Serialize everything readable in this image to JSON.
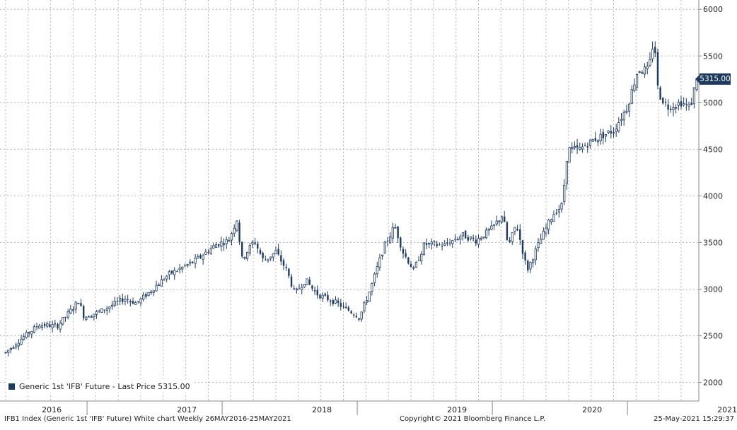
{
  "colors": {
    "candle": "#1f3a5f",
    "grid": "#b5b5b5",
    "axis_text": "#222222",
    "badge_bg": "#1f3a5f",
    "badge_text": "#ffffff"
  },
  "chart_data": {
    "type": "candlestick",
    "title": "IFB1 Index (Generic 1st 'IFB' Future) White chart",
    "frequency": "Weekly",
    "range_label": "26MAY2016-25MAY2021",
    "ylim": [
      1800,
      6100
    ],
    "y_ticks": [
      2000,
      2500,
      3000,
      3500,
      4000,
      4500,
      5000,
      5500,
      6000
    ],
    "x_ticks": [
      {
        "label": "2016",
        "t": 0.1
      },
      {
        "label": "2017",
        "t": 1.1
      },
      {
        "label": "2018",
        "t": 2.1
      },
      {
        "label": "2019",
        "t": 3.1
      },
      {
        "label": "2020",
        "t": 4.1
      },
      {
        "label": "2021",
        "t": 5.1
      }
    ],
    "x_range": [
      0,
      5.0
    ],
    "keypoints": [
      {
        "t": 0.0,
        "v": 2320
      },
      {
        "t": 0.1,
        "v": 2450
      },
      {
        "t": 0.25,
        "v": 2620
      },
      {
        "t": 0.38,
        "v": 2600
      },
      {
        "t": 0.5,
        "v": 2800
      },
      {
        "t": 0.54,
        "v": 2880
      },
      {
        "t": 0.58,
        "v": 2700
      },
      {
        "t": 0.7,
        "v": 2760
      },
      {
        "t": 0.88,
        "v": 2900
      },
      {
        "t": 0.97,
        "v": 2850
      },
      {
        "t": 1.05,
        "v": 2950
      },
      {
        "t": 1.2,
        "v": 3150
      },
      {
        "t": 1.4,
        "v": 3300
      },
      {
        "t": 1.56,
        "v": 3480
      },
      {
        "t": 1.65,
        "v": 3520
      },
      {
        "t": 1.72,
        "v": 3780
      },
      {
        "t": 1.74,
        "v": 3300
      },
      {
        "t": 1.84,
        "v": 3520
      },
      {
        "t": 1.91,
        "v": 3300
      },
      {
        "t": 2.0,
        "v": 3400
      },
      {
        "t": 2.08,
        "v": 3200
      },
      {
        "t": 2.14,
        "v": 2950
      },
      {
        "t": 2.22,
        "v": 3100
      },
      {
        "t": 2.3,
        "v": 2950
      },
      {
        "t": 2.45,
        "v": 2850
      },
      {
        "t": 2.62,
        "v": 2700
      },
      {
        "t": 2.7,
        "v": 3000
      },
      {
        "t": 2.8,
        "v": 3450
      },
      {
        "t": 2.88,
        "v": 3680
      },
      {
        "t": 2.94,
        "v": 3400
      },
      {
        "t": 3.02,
        "v": 3200
      },
      {
        "t": 3.1,
        "v": 3480
      },
      {
        "t": 3.25,
        "v": 3470
      },
      {
        "t": 3.38,
        "v": 3580
      },
      {
        "t": 3.48,
        "v": 3520
      },
      {
        "t": 3.6,
        "v": 3650
      },
      {
        "t": 3.68,
        "v": 3800
      },
      {
        "t": 3.72,
        "v": 3450
      },
      {
        "t": 3.78,
        "v": 3700
      },
      {
        "t": 3.86,
        "v": 3200
      },
      {
        "t": 3.95,
        "v": 3500
      },
      {
        "t": 4.05,
        "v": 3800
      },
      {
        "t": 4.12,
        "v": 3900
      },
      {
        "t": 4.16,
        "v": 4500
      },
      {
        "t": 4.25,
        "v": 4500
      },
      {
        "t": 4.35,
        "v": 4600
      },
      {
        "t": 4.5,
        "v": 4700
      },
      {
        "t": 4.6,
        "v": 4950
      },
      {
        "t": 4.68,
        "v": 5350
      },
      {
        "t": 4.76,
        "v": 5350
      },
      {
        "t": 4.8,
        "v": 5700
      },
      {
        "t": 4.83,
        "v": 5100
      },
      {
        "t": 4.9,
        "v": 4950
      },
      {
        "t": 5.0,
        "v": 5000
      },
      {
        "t": 5.07,
        "v": 4950
      },
      {
        "t": 5.12,
        "v": 5315
      }
    ],
    "series": [
      {
        "name": "Generic 1st 'IFB' Future - Last Price",
        "last_price": "5315.00"
      }
    ]
  },
  "legend": {
    "text": "Generic 1st 'IFB' Future - Last Price 5315.00"
  },
  "last_price_badge": "5315.00",
  "footer": {
    "left": "IFB1 Index (Generic 1st 'IFB' Future) White chart  Weekly 26MAY2016-25MAY2021",
    "center": "Copyright© 2021 Bloomberg Finance L.P.",
    "right": "25-May-2021 15:29:37"
  }
}
